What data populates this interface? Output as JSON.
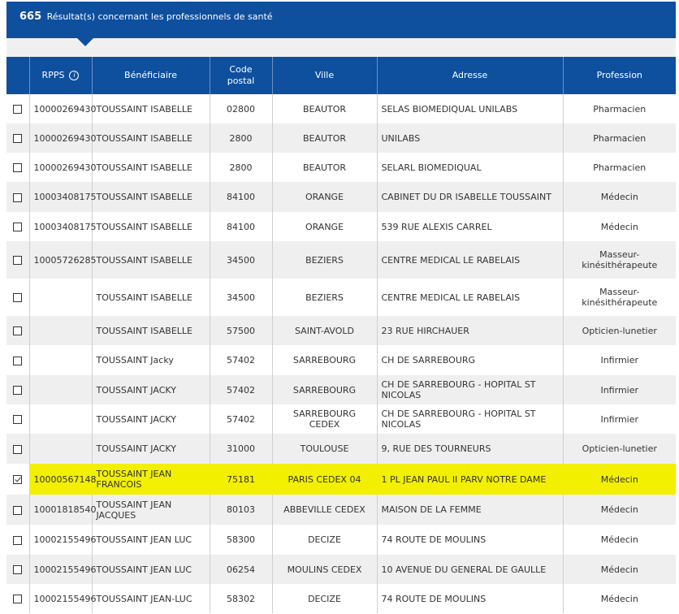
{
  "results": {
    "count": "665",
    "label": "Résultat(s) concernant les professionnels de santé"
  },
  "columns": {
    "rpps": "RPPS",
    "beneficiaire": "Bénéficiaire",
    "code_postal_1": "Code",
    "code_postal_2": "postal",
    "ville": "Ville",
    "adresse": "Adresse",
    "profession": "Profession"
  },
  "rows": [
    {
      "rpps": "10000269430",
      "nom": "TOUSSAINT ISABELLE",
      "cp": "02800",
      "ville": "BEAUTOR",
      "adresse": "SELAS BIOMEDIQUAL UNILABS",
      "profession": "Pharmacien",
      "checked": false
    },
    {
      "rpps": "10000269430",
      "nom": "TOUSSAINT ISABELLE",
      "cp": "2800",
      "ville": "BEAUTOR",
      "adresse": "UNILABS",
      "profession": "Pharmacien",
      "checked": false
    },
    {
      "rpps": "10000269430",
      "nom": "TOUSSAINT ISABELLE",
      "cp": "2800",
      "ville": "BEAUTOR",
      "adresse": "SELARL BIOMEDIQUAL",
      "profession": "Pharmacien",
      "checked": false
    },
    {
      "rpps": "10003408175",
      "nom": "TOUSSAINT ISABELLE",
      "cp": "84100",
      "ville": "ORANGE",
      "adresse": "CABINET DU DR ISABELLE TOUSSAINT",
      "profession": "Médecin",
      "checked": false
    },
    {
      "rpps": "10003408175",
      "nom": "TOUSSAINT ISABELLE",
      "cp": "84100",
      "ville": "ORANGE",
      "adresse": "539 RUE ALEXIS CARREL",
      "profession": "Médecin",
      "checked": false
    },
    {
      "rpps": "10005726285",
      "nom": "TOUSSAINT ISABELLE",
      "cp": "34500",
      "ville": "BEZIERS",
      "adresse": "CENTRE MEDICAL LE RABELAIS",
      "profession": "Masseur-\nkinésithérapeute",
      "checked": false
    },
    {
      "rpps": "",
      "nom": "TOUSSAINT ISABELLE",
      "cp": "34500",
      "ville": "BEZIERS",
      "adresse": "CENTRE MEDICAL LE RABELAIS",
      "profession": "Masseur-\nkinésithérapeute",
      "checked": false
    },
    {
      "rpps": "",
      "nom": "TOUSSAINT ISABELLE",
      "cp": "57500",
      "ville": "SAINT-AVOLD",
      "adresse": "23 RUE HIRCHAUER",
      "profession": "Opticien-lunetier",
      "checked": false
    },
    {
      "rpps": "",
      "nom": "TOUSSAINT Jacky",
      "cp": "57402",
      "ville": "SARREBOURG",
      "adresse": "CH DE SARREBOURG",
      "profession": "Infirmier",
      "checked": false
    },
    {
      "rpps": "",
      "nom": "TOUSSAINT JACKY",
      "cp": "57402",
      "ville": "SARREBOURG",
      "adresse": "CH DE SARREBOURG - HOPITAL ST NICOLAS",
      "profession": "Infirmier",
      "checked": false
    },
    {
      "rpps": "",
      "nom": "TOUSSAINT JACKY",
      "cp": "57402",
      "ville": "SARREBOURG CEDEX",
      "adresse": "CH DE SARREBOURG - HOPITAL ST NICOLAS",
      "profession": "Infirmier",
      "checked": false
    },
    {
      "rpps": "",
      "nom": "TOUSSAINT JACKY",
      "cp": "31000",
      "ville": "TOULOUSE",
      "adresse": "9, RUE DES TOURNEURS",
      "profession": "Opticien-lunetier",
      "checked": false
    },
    {
      "rpps": "10000567148",
      "nom": "TOUSSAINT JEAN\nFRANCOIS",
      "cp": "75181",
      "ville": "PARIS CEDEX 04",
      "adresse": "1 PL JEAN PAUL II PARV NOTRE DAME",
      "profession": "Médecin",
      "checked": true,
      "highlighted": true
    },
    {
      "rpps": "10001818540",
      "nom": "TOUSSAINT JEAN JACQUES",
      "cp": "80103",
      "ville": "ABBEVILLE CEDEX",
      "adresse": "MAISON DE LA FEMME",
      "profession": "Médecin",
      "checked": false
    },
    {
      "rpps": "10002155496",
      "nom": "TOUSSAINT JEAN LUC",
      "cp": "58300",
      "ville": "DECIZE",
      "adresse": "74 ROUTE DE MOULINS",
      "profession": "Médecin",
      "checked": false
    },
    {
      "rpps": "10002155496",
      "nom": "TOUSSAINT JEAN LUC",
      "cp": "06254",
      "ville": "MOULINS CEDEX",
      "adresse": "10 AVENUE DU GENERAL DE GAULLE",
      "profession": "Médecin",
      "checked": false
    },
    {
      "rpps": "10002155496",
      "nom": "TOUSSAINT JEAN-LUC",
      "cp": "58302",
      "ville": "DECIZE",
      "adresse": "74 ROUTE DE MOULINS",
      "profession": "Médecin",
      "checked": false
    }
  ]
}
